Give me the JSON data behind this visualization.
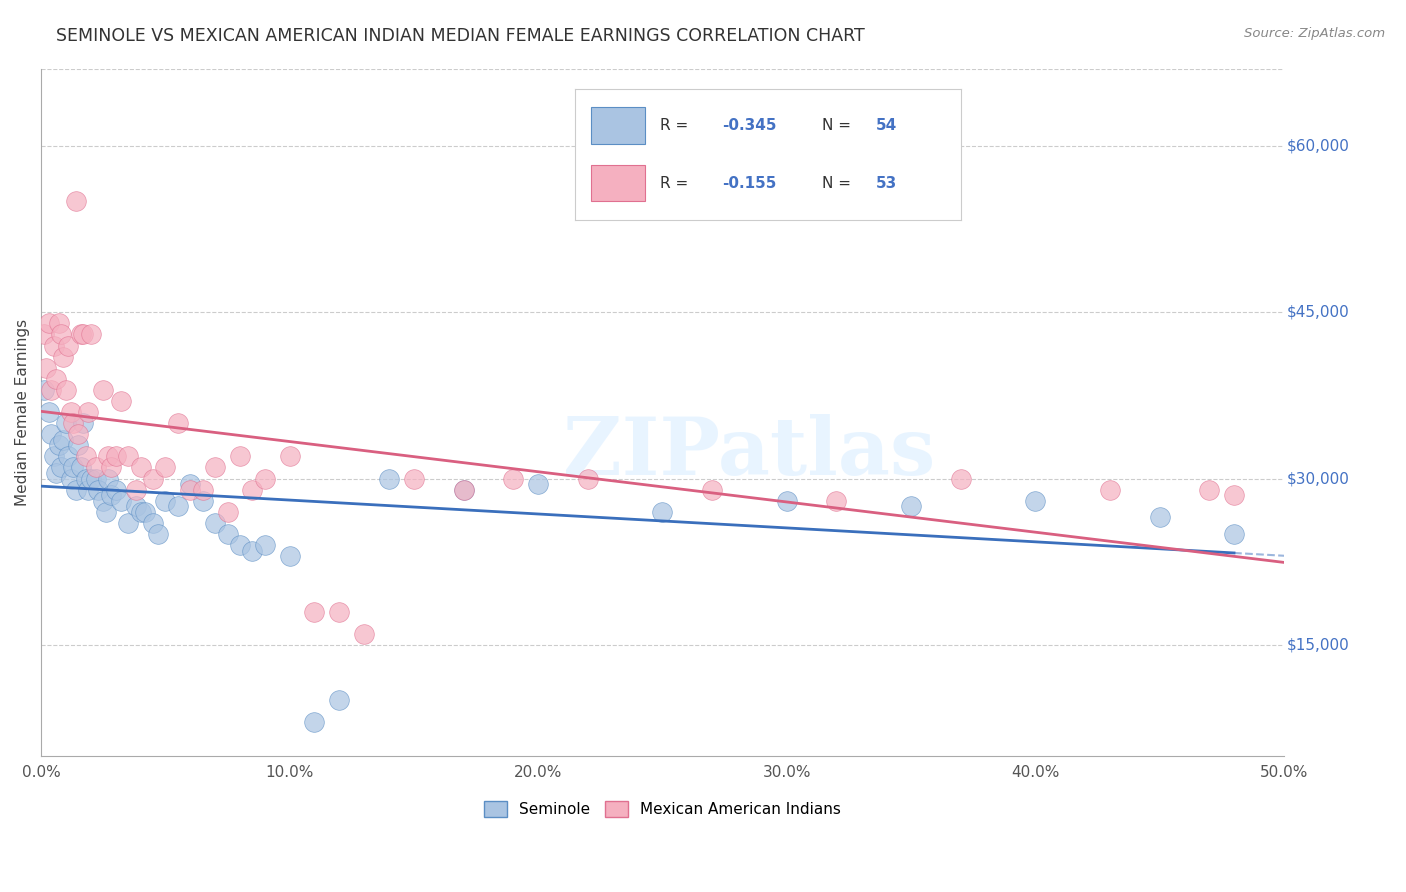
{
  "title": "SEMINOLE VS MEXICAN AMERICAN INDIAN MEDIAN FEMALE EARNINGS CORRELATION CHART",
  "source": "Source: ZipAtlas.com",
  "ylabel_label": "Median Female Earnings",
  "xlim": [
    0.0,
    0.5
  ],
  "ylim": [
    5000,
    67000
  ],
  "ytick_vals": [
    15000,
    30000,
    45000,
    60000
  ],
  "ytick_labels": [
    "$15,000",
    "$30,000",
    "$45,000",
    "$60,000"
  ],
  "xtick_vals": [
    0.0,
    0.1,
    0.2,
    0.3,
    0.4,
    0.5
  ],
  "xtick_labels": [
    "0.0%",
    "10.0%",
    "20.0%",
    "30.0%",
    "40.0%",
    "50.0%"
  ],
  "seminole_R": "-0.345",
  "seminole_N": "54",
  "mexican_R": "-0.155",
  "mexican_N": "53",
  "watermark": "ZIPatlas",
  "seminole_color": "#aac4e2",
  "seminole_edge_color": "#5b8ec4",
  "seminole_line_color": "#3a6fbc",
  "mexican_color": "#f5b0c0",
  "mexican_edge_color": "#e07090",
  "mexican_line_color": "#d95f80",
  "right_label_color": "#4472c4",
  "seminole_scatter_x": [
    0.001,
    0.003,
    0.004,
    0.005,
    0.006,
    0.007,
    0.008,
    0.009,
    0.01,
    0.011,
    0.012,
    0.013,
    0.014,
    0.015,
    0.016,
    0.017,
    0.018,
    0.019,
    0.02,
    0.022,
    0.023,
    0.025,
    0.026,
    0.027,
    0.028,
    0.03,
    0.032,
    0.035,
    0.038,
    0.04,
    0.042,
    0.045,
    0.047,
    0.05,
    0.055,
    0.06,
    0.065,
    0.07,
    0.075,
    0.08,
    0.085,
    0.09,
    0.1,
    0.11,
    0.12,
    0.14,
    0.17,
    0.2,
    0.25,
    0.3,
    0.35,
    0.4,
    0.45,
    0.48
  ],
  "seminole_scatter_y": [
    38000,
    36000,
    34000,
    32000,
    30500,
    33000,
    31000,
    33500,
    35000,
    32000,
    30000,
    31000,
    29000,
    33000,
    31000,
    35000,
    30000,
    29000,
    30000,
    30000,
    29000,
    28000,
    27000,
    30000,
    28500,
    29000,
    28000,
    26000,
    27500,
    27000,
    27000,
    26000,
    25000,
    28000,
    27500,
    29500,
    28000,
    26000,
    25000,
    24000,
    23500,
    24000,
    23000,
    8000,
    10000,
    30000,
    29000,
    29500,
    27000,
    28000,
    27500,
    28000,
    26500,
    25000
  ],
  "mexican_scatter_x": [
    0.001,
    0.002,
    0.003,
    0.004,
    0.005,
    0.006,
    0.007,
    0.008,
    0.009,
    0.01,
    0.011,
    0.012,
    0.013,
    0.014,
    0.015,
    0.016,
    0.017,
    0.018,
    0.019,
    0.02,
    0.022,
    0.025,
    0.027,
    0.028,
    0.03,
    0.032,
    0.035,
    0.038,
    0.04,
    0.045,
    0.05,
    0.055,
    0.06,
    0.065,
    0.07,
    0.075,
    0.08,
    0.085,
    0.09,
    0.1,
    0.11,
    0.12,
    0.13,
    0.15,
    0.17,
    0.19,
    0.22,
    0.27,
    0.32,
    0.37,
    0.43,
    0.47,
    0.48
  ],
  "mexican_scatter_y": [
    43000,
    40000,
    44000,
    38000,
    42000,
    39000,
    44000,
    43000,
    41000,
    38000,
    42000,
    36000,
    35000,
    55000,
    34000,
    43000,
    43000,
    32000,
    36000,
    43000,
    31000,
    38000,
    32000,
    31000,
    32000,
    37000,
    32000,
    29000,
    31000,
    30000,
    31000,
    35000,
    29000,
    29000,
    31000,
    27000,
    32000,
    29000,
    30000,
    32000,
    18000,
    18000,
    16000,
    30000,
    29000,
    30000,
    30000,
    29000,
    28000,
    30000,
    29000,
    29000,
    28500
  ]
}
